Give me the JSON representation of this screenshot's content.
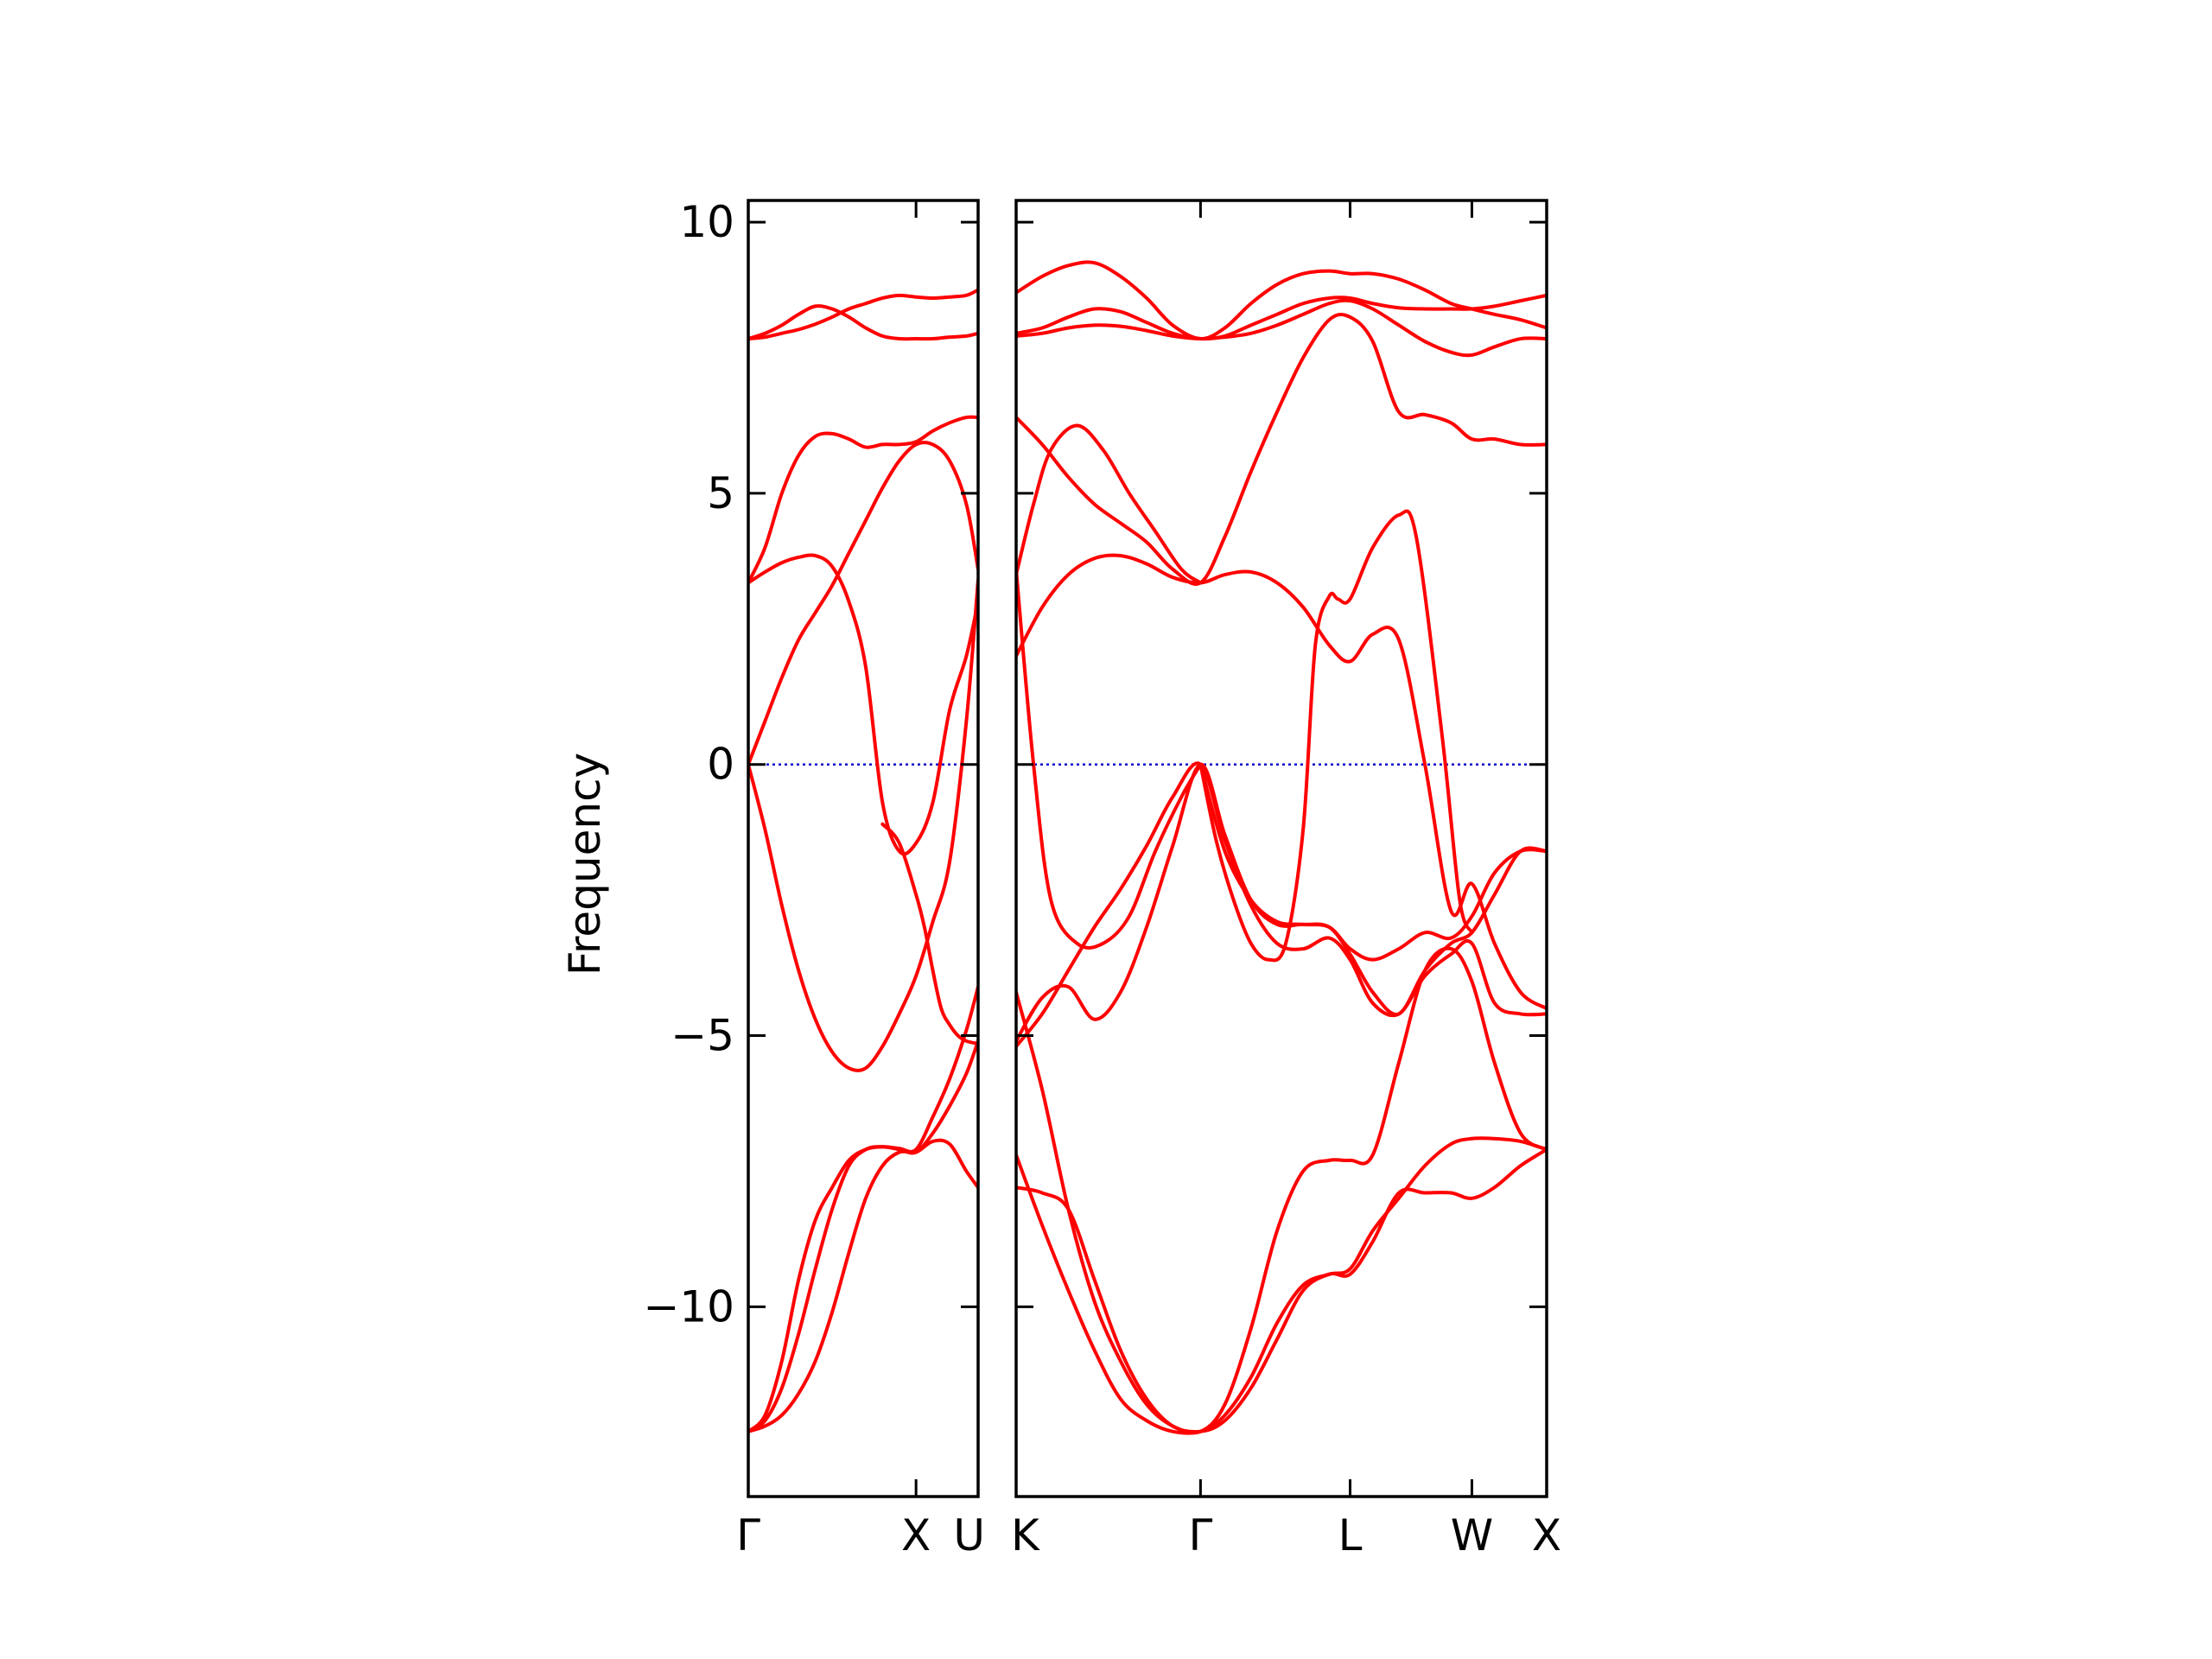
{
  "chart_data": {
    "type": "line",
    "ylabel": "Frequency",
    "ylim": [
      -13.5,
      10.4
    ],
    "yticks": [
      10,
      5,
      0,
      -5,
      -10
    ],
    "ytick_labels": [
      "10",
      "5",
      "0",
      "−5",
      "−10"
    ],
    "grid": false,
    "colors": {
      "bands": "#ff0000",
      "zero_line": "#0000cc",
      "axes": "#000000"
    },
    "panels": [
      {
        "name": "left-panel",
        "xlim": [
          0,
          1.37
        ],
        "xticks": [
          {
            "x": 0,
            "label": "Γ"
          },
          {
            "x": 1,
            "label": "X"
          },
          {
            "x": 1.37,
            "label": "U"
          }
        ],
        "series": [
          {
            "x": [
              0,
              0.1,
              0.2,
              0.3,
              0.4,
              0.5,
              0.6,
              0.7,
              0.8,
              0.9,
              1.0,
              1.1,
              1.2,
              1.3,
              1.37
            ],
            "values": [
              7.85,
              7.95,
              8.1,
              8.3,
              8.45,
              8.4,
              8.25,
              8.05,
              7.9,
              7.85,
              7.85,
              7.85,
              7.88,
              7.9,
              7.95
            ]
          },
          {
            "x": [
              0,
              0.1,
              0.2,
              0.3,
              0.4,
              0.5,
              0.6,
              0.7,
              0.8,
              0.9,
              1.0,
              1.1,
              1.2,
              1.3,
              1.37
            ],
            "values": [
              7.85,
              7.88,
              7.95,
              8.02,
              8.12,
              8.25,
              8.4,
              8.5,
              8.6,
              8.65,
              8.62,
              8.6,
              8.62,
              8.65,
              8.75
            ]
          },
          {
            "x": [
              0,
              0.1,
              0.2,
              0.3,
              0.4,
              0.5,
              0.6,
              0.7,
              0.8,
              0.9,
              1.0,
              1.1,
              1.2,
              1.3,
              1.37
            ],
            "values": [
              3.35,
              4.0,
              5.0,
              5.7,
              6.05,
              6.1,
              6.0,
              5.85,
              5.9,
              5.9,
              5.95,
              6.15,
              6.3,
              6.4,
              6.4
            ]
          },
          {
            "x": [
              0,
              0.1,
              0.2,
              0.3,
              0.4,
              0.5,
              0.6,
              0.7,
              0.8,
              0.9,
              1.0,
              1.1,
              1.2,
              1.3,
              1.37
            ],
            "values": [
              3.35,
              3.55,
              3.72,
              3.82,
              3.85,
              3.65,
              3.0,
              1.8,
              -0.7,
              -1.6,
              -1.45,
              -0.7,
              1.0,
              2.0,
              3.0
            ]
          },
          {
            "x": [
              0,
              0.1,
              0.2,
              0.3,
              0.4,
              0.5,
              0.6,
              0.7,
              0.8,
              0.9,
              1.0,
              1.1,
              1.2,
              1.3,
              1.37
            ],
            "values": [
              0,
              0.8,
              1.6,
              2.3,
              2.8,
              3.3,
              3.9,
              4.5,
              5.1,
              5.6,
              5.9,
              5.9,
              5.6,
              4.8,
              3.6
            ]
          },
          {
            "x": [
              0,
              0.1,
              0.2,
              0.3,
              0.4,
              0.5,
              0.6,
              0.7,
              0.8,
              0.9,
              1.0,
              1.1,
              1.2,
              1.3,
              1.37
            ],
            "values": [
              0,
              -1.2,
              -2.6,
              -3.8,
              -4.7,
              -5.3,
              -5.6,
              -5.6,
              -5.2,
              -4.6,
              -3.9,
              -2.9,
              -1.8,
              0.8,
              3.4
            ]
          },
          {
            "x": [
              0,
              0.1,
              0.2,
              0.3,
              0.4,
              0.5,
              0.6,
              0.7,
              0.8,
              0.9,
              1.0,
              1.1,
              1.2,
              1.3,
              1.37
            ],
            "values": [
              -12.3,
              -12.1,
              -11.5,
              -10.5,
              -9.3,
              -8.2,
              -7.4,
              -7.1,
              -7.05,
              -7.1,
              -7.15,
              -6.8,
              -6.3,
              -5.7,
              -5.1
            ]
          },
          {
            "x": [
              0,
              0.1,
              0.2,
              0.3,
              0.4,
              0.5,
              0.6,
              0.7,
              0.8,
              0.9,
              1.0,
              1.1,
              1.2,
              1.3,
              1.37
            ],
            "values": [
              -12.3,
              -12.2,
              -12.0,
              -11.6,
              -11.0,
              -10.1,
              -9.0,
              -8.0,
              -7.4,
              -7.15,
              -7.15,
              -6.95,
              -7.0,
              -7.5,
              -7.8
            ]
          },
          {
            "x": [
              0,
              0.1,
              0.2,
              0.3,
              0.4,
              0.5,
              0.6,
              0.7,
              0.8,
              0.9,
              1.0,
              1.1,
              1.2,
              1.3,
              1.37
            ],
            "values": [
              -12.3,
              -12.0,
              -11.0,
              -9.5,
              -8.4,
              -7.8,
              -7.3,
              -7.1,
              -7.05,
              -7.08,
              -7.1,
              -6.5,
              -5.8,
              -4.9,
              -4.1
            ]
          },
          {
            "x": [
              0.8,
              0.9,
              1.0,
              1.05,
              1.1,
              1.15,
              1.2,
              1.25,
              1.3,
              1.37
            ],
            "values": [
              -1.1,
              -1.45,
              -2.4,
              -3.0,
              -3.8,
              -4.5,
              -4.8,
              -5.0,
              -5.1,
              -5.15
            ]
          }
        ]
      },
      {
        "name": "right-panel",
        "xlim": [
          0,
          3.05
        ],
        "xticks": [
          {
            "x": 0,
            "label": "K"
          },
          {
            "x": 1.06,
            "label": "Γ"
          },
          {
            "x": 1.92,
            "label": "L"
          },
          {
            "x": 2.62,
            "label": "W"
          },
          {
            "x": 3.05,
            "label": "X"
          }
        ],
        "series": [
          {
            "x": [
              0,
              0.15,
              0.3,
              0.45,
              0.6,
              0.75,
              0.9,
              1.06,
              1.2,
              1.35,
              1.5,
              1.65,
              1.8,
              1.92,
              2.05,
              2.2,
              2.35,
              2.5,
              2.62,
              2.75,
              2.9,
              3.05
            ],
            "values": [
              8.7,
              9.0,
              9.2,
              9.25,
              9.0,
              8.6,
              8.1,
              7.85,
              8.05,
              8.5,
              8.85,
              9.05,
              9.1,
              9.05,
              9.05,
              8.95,
              8.75,
              8.5,
              8.4,
              8.3,
              8.2,
              8.05
            ]
          },
          {
            "x": [
              0,
              0.15,
              0.3,
              0.45,
              0.6,
              0.75,
              0.9,
              1.06,
              1.2,
              1.35,
              1.5,
              1.65,
              1.8,
              1.92,
              2.05,
              2.2,
              2.35,
              2.5,
              2.62,
              2.75,
              2.9,
              3.05
            ],
            "values": [
              7.95,
              8.05,
              8.25,
              8.4,
              8.35,
              8.15,
              7.95,
              7.85,
              7.9,
              8.1,
              8.3,
              8.5,
              8.6,
              8.6,
              8.5,
              8.42,
              8.4,
              8.4,
              8.4,
              8.45,
              8.55,
              8.65
            ]
          },
          {
            "x": [
              0,
              0.15,
              0.3,
              0.45,
              0.6,
              0.75,
              0.9,
              1.06,
              1.2,
              1.35,
              1.5,
              1.65,
              1.8,
              1.92,
              2.05,
              2.2,
              2.35,
              2.5,
              2.62,
              2.75,
              2.9,
              3.05
            ],
            "values": [
              7.9,
              7.95,
              8.05,
              8.1,
              8.08,
              8.0,
              7.9,
              7.85,
              7.88,
              7.95,
              8.1,
              8.3,
              8.5,
              8.55,
              8.4,
              8.1,
              7.8,
              7.6,
              7.55,
              7.7,
              7.85,
              7.85
            ]
          },
          {
            "x": [
              0,
              0.15,
              0.3,
              0.45,
              0.6,
              0.75,
              0.9,
              1.06,
              1.2,
              1.35,
              1.5,
              1.65,
              1.8,
              1.92,
              2.05,
              2.2,
              2.35,
              2.5,
              2.62,
              2.75,
              2.9,
              3.05
            ],
            "values": [
              6.4,
              5.9,
              5.3,
              4.8,
              4.45,
              4.1,
              3.6,
              3.35,
              4.2,
              5.4,
              6.5,
              7.5,
              8.2,
              8.25,
              7.8,
              6.5,
              6.45,
              6.3,
              6.0,
              6.0,
              5.9,
              5.9
            ]
          },
          {
            "x": [
              0,
              0.1,
              0.2,
              0.35,
              0.5,
              0.65,
              0.8,
              0.95,
              1.06
            ],
            "values": [
              3.5,
              4.8,
              5.8,
              6.25,
              5.8,
              5.0,
              4.3,
              3.6,
              3.35
            ]
          },
          {
            "x": [
              0,
              0.15,
              0.3,
              0.45,
              0.6,
              0.75,
              0.9,
              1.06,
              1.2,
              1.35,
              1.5,
              1.65,
              1.8,
              1.92,
              2.05,
              2.2,
              2.35,
              2.5,
              2.62,
              2.75,
              2.9,
              3.05
            ],
            "values": [
              2.0,
              2.9,
              3.5,
              3.8,
              3.85,
              3.7,
              3.45,
              3.35,
              3.5,
              3.55,
              3.35,
              2.9,
              2.2,
              1.9,
              2.4,
              2.3,
              0.0,
              -2.7,
              -2.2,
              -3.3,
              -4.2,
              -4.5
            ]
          },
          {
            "x": [
              0,
              0.1,
              0.2,
              0.35,
              0.5,
              0.65,
              0.8,
              0.95,
              1.06
            ],
            "values": [
              3.6,
              0.0,
              -2.5,
              -3.3,
              -3.3,
              -2.8,
              -1.6,
              -0.6,
              0.0
            ]
          },
          {
            "x": [
              1.06,
              1.2,
              1.35,
              1.5,
              1.65,
              1.8,
              1.92,
              2.05,
              2.2,
              2.35,
              2.5,
              2.62,
              2.75,
              2.9,
              3.05
            ],
            "values": [
              0.0,
              -1.6,
              -2.5,
              -2.9,
              -2.95,
              -3.0,
              -3.4,
              -3.6,
              -3.4,
              -3.1,
              -3.2,
              -2.8,
              -2.0,
              -1.6,
              -1.6
            ]
          },
          {
            "x": [
              1.06,
              1.15,
              1.25,
              1.35,
              1.45,
              1.55,
              1.65,
              1.72,
              1.8,
              1.85,
              1.92,
              2.05,
              2.2,
              2.3,
              2.45,
              2.55,
              2.62
            ],
            "values": [
              0.0,
              -1.4,
              -2.5,
              -3.3,
              -3.6,
              -3.3,
              -1.2,
              2.2,
              3.1,
              3.05,
              3.05,
              4.0,
              4.6,
              4.2,
              0.5,
              -2.5,
              -3.1
            ]
          },
          {
            "x": [
              0,
              0.15,
              0.3,
              0.45,
              0.6,
              0.75,
              0.9,
              1.06,
              1.2,
              1.35,
              1.5,
              1.65,
              1.8,
              1.92,
              2.05,
              2.2,
              2.35,
              2.5,
              2.62,
              2.75,
              2.9,
              3.05
            ],
            "values": [
              -5.1,
              -4.3,
              -4.1,
              -4.7,
              -4.2,
              -3.0,
              -1.5,
              0.0,
              -1.3,
              -2.5,
              -2.95,
              -2.95,
              -3.0,
              -3.5,
              -4.2,
              -4.6,
              -3.8,
              -3.3,
              -3.1,
              -2.4,
              -1.6,
              -1.6
            ]
          },
          {
            "x": [
              0,
              0.15,
              0.3,
              0.45,
              0.6,
              0.75,
              0.9,
              1.06,
              1.2,
              1.35,
              1.5,
              1.65,
              1.8,
              1.92,
              2.05,
              2.2,
              2.35,
              2.5,
              2.62,
              2.75,
              2.9,
              3.05
            ],
            "values": [
              -5.2,
              -4.6,
              -3.8,
              -3.0,
              -2.3,
              -1.5,
              -0.6,
              0.0,
              -1.4,
              -2.6,
              -3.3,
              -3.4,
              -3.2,
              -3.6,
              -4.4,
              -4.6,
              -3.9,
              -3.5,
              -3.3,
              -4.4,
              -4.6,
              -4.6
            ]
          },
          {
            "x": [
              0,
              0.15,
              0.3,
              0.45,
              0.6,
              0.75,
              0.9,
              1.06,
              1.2,
              1.35,
              1.5,
              1.65,
              1.8,
              1.92,
              2.05,
              2.2,
              2.35,
              2.5,
              2.62,
              2.75,
              2.9,
              3.05
            ],
            "values": [
              -4.2,
              -6.0,
              -8.2,
              -9.9,
              -11.0,
              -11.8,
              -12.2,
              -12.3,
              -11.8,
              -10.4,
              -8.6,
              -7.5,
              -7.3,
              -7.3,
              -7.2,
              -5.5,
              -3.8,
              -3.4,
              -4.0,
              -5.5,
              -6.8,
              -7.1
            ]
          },
          {
            "x": [
              0,
              0.15,
              0.3,
              0.45,
              0.6,
              0.75,
              0.9,
              1.06,
              1.2,
              1.35,
              1.5,
              1.65,
              1.8,
              1.92,
              2.05,
              2.2,
              2.35,
              2.5,
              2.62,
              2.75,
              2.9,
              3.05
            ],
            "values": [
              -7.2,
              -8.5,
              -9.7,
              -10.8,
              -11.7,
              -12.1,
              -12.3,
              -12.3,
              -12.0,
              -11.3,
              -10.3,
              -9.6,
              -9.4,
              -9.3,
              -8.6,
              -8.0,
              -7.4,
              -7.0,
              -6.9,
              -6.9,
              -6.95,
              -7.1
            ]
          },
          {
            "x": [
              0,
              0.15,
              0.3,
              0.45,
              0.6,
              0.75,
              0.9,
              1.06,
              1.2,
              1.35,
              1.5,
              1.65,
              1.8,
              1.92,
              2.05,
              2.2,
              2.35,
              2.5,
              2.62,
              2.75,
              2.9,
              3.05
            ],
            "values": [
              -7.8,
              -7.9,
              -8.2,
              -9.5,
              -10.8,
              -11.7,
              -12.2,
              -12.3,
              -12.1,
              -11.5,
              -10.6,
              -9.7,
              -9.4,
              -9.4,
              -8.8,
              -7.9,
              -7.9,
              -7.9,
              -8.0,
              -7.8,
              -7.4,
              -7.1
            ]
          }
        ]
      }
    ]
  }
}
